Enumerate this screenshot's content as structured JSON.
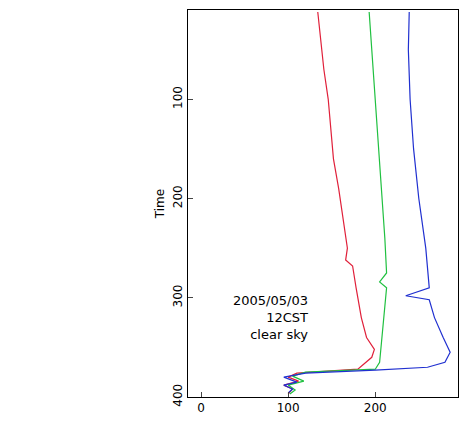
{
  "chart_data": {
    "type": "line",
    "y_label": "Time",
    "annotations": [
      "2005/05/03",
      "12CST",
      "clear sky"
    ],
    "xlim": [
      -15,
      295
    ],
    "xticks": [
      0,
      100,
      200
    ],
    "ylim": [
      400,
      10
    ],
    "yticks": [
      100,
      200,
      300,
      400
    ],
    "grid": false,
    "series": [
      {
        "color": "#e0203a",
        "x": [
          134,
          137,
          141,
          146,
          149,
          152,
          158,
          163,
          168,
          166,
          174,
          178,
          184,
          190,
          199,
          196,
          180,
          110,
          100,
          112,
          95,
          105,
          100
        ],
        "y": [
          12,
          40,
          70,
          100,
          130,
          160,
          190,
          220,
          250,
          262,
          268,
          290,
          320,
          340,
          352,
          360,
          372,
          376,
          380,
          384,
          388,
          392,
          397
        ]
      },
      {
        "color": "#20c040",
        "x": [
          193,
          196,
          200,
          204,
          208,
          211,
          213,
          205,
          213,
          210,
          207,
          205,
          200,
          120,
          105,
          118,
          100,
          108,
          102
        ],
        "y": [
          12,
          50,
          100,
          150,
          200,
          240,
          275,
          284,
          290,
          320,
          350,
          365,
          372,
          375,
          379,
          384,
          388,
          393,
          397
        ]
      },
      {
        "color": "#2030d0",
        "x": [
          239,
          238,
          240,
          244,
          250,
          258,
          262,
          235,
          262,
          268,
          278,
          286,
          280,
          260,
          200,
          120,
          95,
          110,
          95,
          105,
          100
        ],
        "y": [
          12,
          50,
          100,
          150,
          200,
          250,
          290,
          298,
          302,
          320,
          340,
          355,
          365,
          370,
          373,
          376,
          380,
          385,
          388,
          392,
          396
        ]
      }
    ]
  }
}
